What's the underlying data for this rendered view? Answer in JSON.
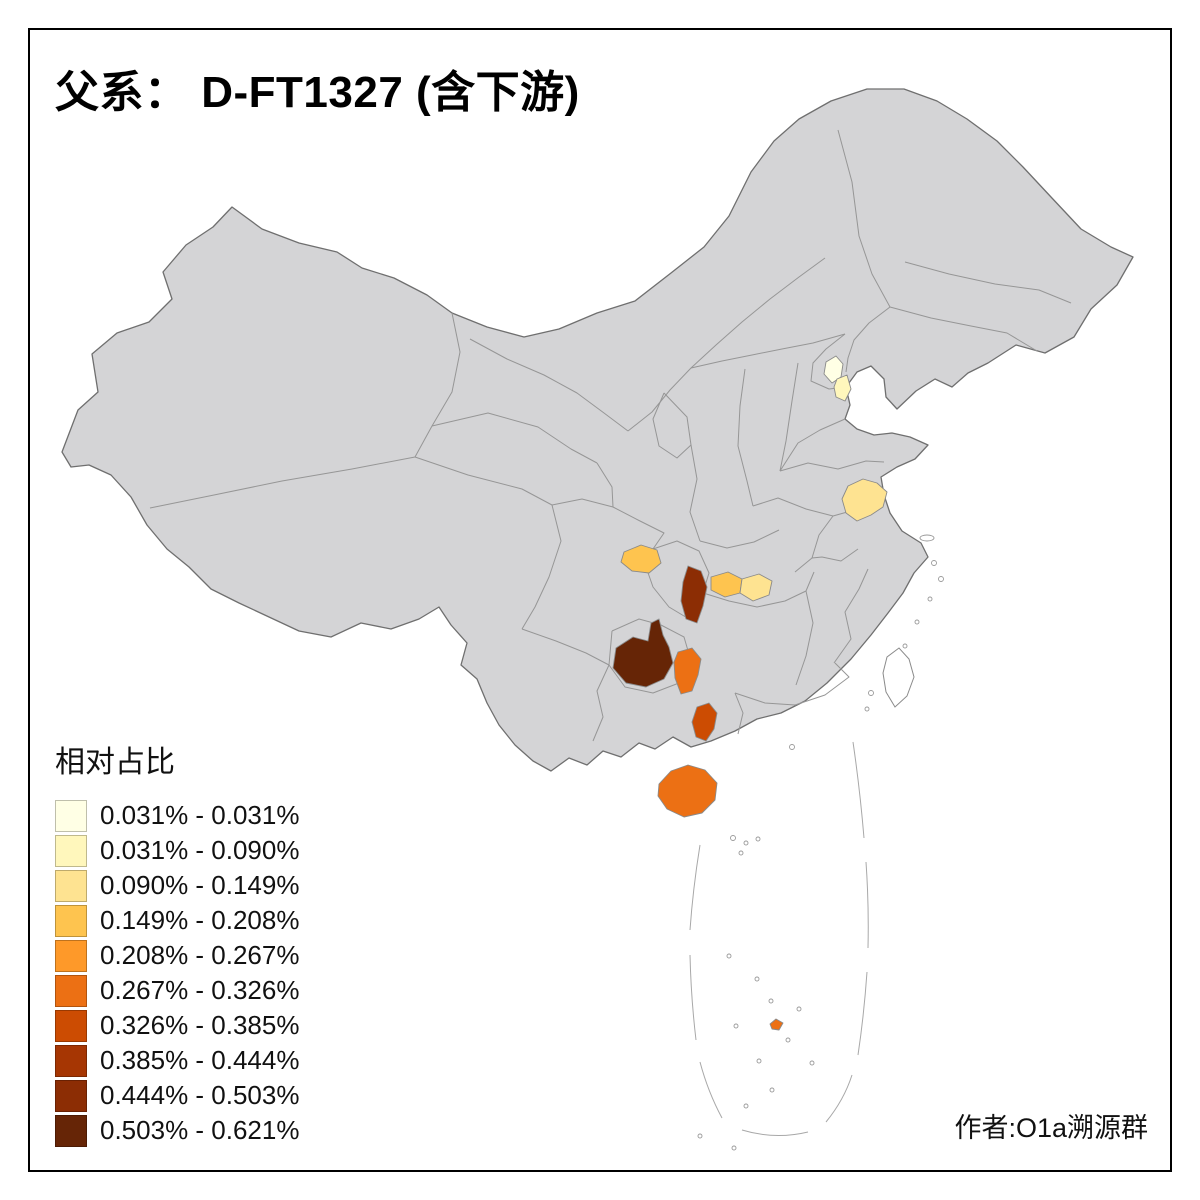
{
  "title": "父系： D-FT1327 (含下游)",
  "attribution": "作者:O1a溯源群",
  "legend": {
    "title": "相对占比",
    "classes": [
      {
        "label": "0.031% - 0.031%",
        "color": "#FFFFE5"
      },
      {
        "label": "0.031% - 0.090%",
        "color": "#FFF7BC"
      },
      {
        "label": "0.090% - 0.149%",
        "color": "#FEE391"
      },
      {
        "label": "0.149% - 0.208%",
        "color": "#FEC44F"
      },
      {
        "label": "0.208% - 0.267%",
        "color": "#FE9929"
      },
      {
        "label": "0.267% - 0.326%",
        "color": "#EC7014"
      },
      {
        "label": "0.326% - 0.385%",
        "color": "#CC4C02"
      },
      {
        "label": "0.385% - 0.444%",
        "color": "#A63603"
      },
      {
        "label": "0.444% - 0.503%",
        "color": "#8C2D04"
      },
      {
        "label": "0.503% - 0.621%",
        "color": "#662506"
      }
    ]
  },
  "map": {
    "base_fill": "#d4d4d6",
    "border_color": "#6f6f6f",
    "inner_border_color": "#969696",
    "sea_fill": "#ffffff",
    "regions": [
      {
        "id": "beijing",
        "hint": "Beijing area patch",
        "color": "#FFFFE5",
        "class_label": "0.031% - 0.031%"
      },
      {
        "id": "tianjin",
        "hint": "Tianjin area patch",
        "color": "#FFF7BC",
        "class_label": "0.031% - 0.090%"
      },
      {
        "id": "jiangsu",
        "hint": "Jiangsu area patch",
        "color": "#FEE391",
        "class_label": "0.090% - 0.149%"
      },
      {
        "id": "sichuan-east",
        "hint": "East Sichuan / west Chongqing",
        "color": "#FEC44F",
        "class_label": "0.149% - 0.208%"
      },
      {
        "id": "hubei-southwest",
        "hint": "Tall dark patch SW Hubei/SE Chongqing",
        "color": "#8C2D04",
        "class_label": "0.444% - 0.503%"
      },
      {
        "id": "hubei-west",
        "hint": "West-central Hubei patch",
        "color": "#FEC44F",
        "class_label": "0.149% - 0.208%"
      },
      {
        "id": "hubei-central",
        "hint": "Central Hubei patch",
        "color": "#FEE391",
        "class_label": "0.090% - 0.149%"
      },
      {
        "id": "guizhou",
        "hint": "Guizhou dark-brown blob with north spike",
        "color": "#662506",
        "class_label": "0.503% - 0.621%"
      },
      {
        "id": "hunan-west",
        "hint": "Orange patch west Hunan / east Guizhou",
        "color": "#EC7014",
        "class_label": "0.267% - 0.326%"
      },
      {
        "id": "guangxi-east",
        "hint": "Dark-orange patch east Guangxi",
        "color": "#CC4C02",
        "class_label": "0.326% - 0.385%"
      },
      {
        "id": "hainan",
        "hint": "Hainan island",
        "color": "#EC7014",
        "class_label": "0.267% - 0.326%"
      },
      {
        "id": "sea-islet",
        "hint": "Small South China Sea islet",
        "color": "#EC7014",
        "class_label": "0.267% - 0.326%"
      }
    ]
  }
}
